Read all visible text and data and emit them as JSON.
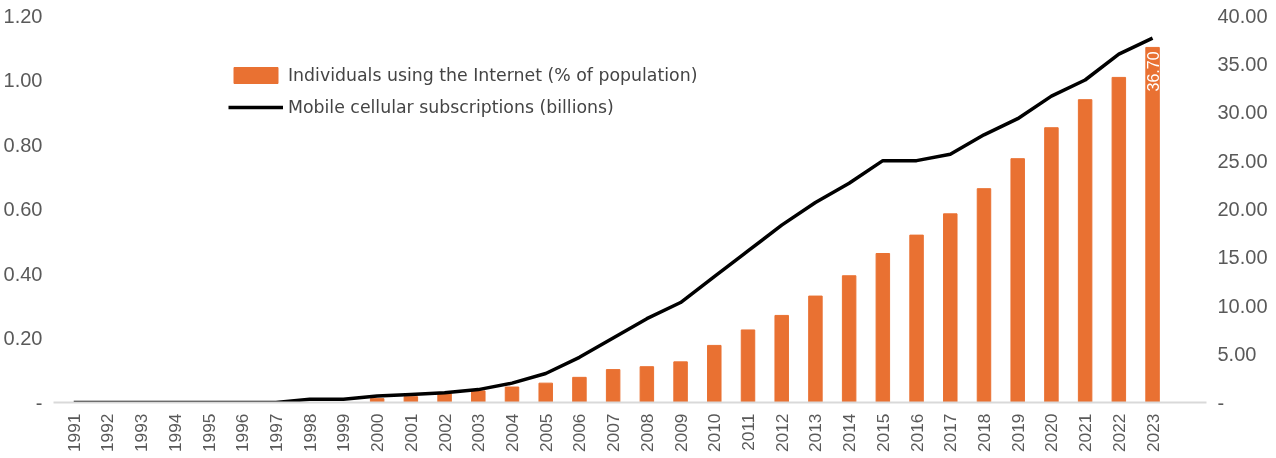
{
  "chart_data": {
    "type": "bar",
    "categories": [
      "1991",
      "1992",
      "1993",
      "1994",
      "1995",
      "1996",
      "1997",
      "1998",
      "1999",
      "2000",
      "2001",
      "2002",
      "2003",
      "2004",
      "2005",
      "2006",
      "2007",
      "2008",
      "2009",
      "2010",
      "2011",
      "2012",
      "2013",
      "2014",
      "2015",
      "2016",
      "2017",
      "2018",
      "2019",
      "2020",
      "2021",
      "2022",
      "2023"
    ],
    "series": [
      {
        "name": "Individuals using the Internet (% of population)",
        "axis": "y2",
        "color": "#e97132",
        "values": [
          0,
          0,
          0,
          0,
          0,
          0,
          0,
          0,
          0,
          0.4,
          0.6,
          0.9,
          1.2,
          1.6,
          2.0,
          2.6,
          3.4,
          3.7,
          4.2,
          5.9,
          7.5,
          9.0,
          11.0,
          13.1,
          15.4,
          17.3,
          19.5,
          22.1,
          25.2,
          28.4,
          31.3,
          33.6,
          36.7
        ],
        "value_labels": [
          null,
          null,
          null,
          null,
          null,
          null,
          null,
          null,
          null,
          null,
          null,
          null,
          null,
          null,
          null,
          null,
          null,
          null,
          null,
          null,
          null,
          null,
          null,
          null,
          null,
          null,
          null,
          null,
          null,
          null,
          null,
          null,
          "36.70"
        ]
      },
      {
        "name": "Mobile cellular subscriptions (billions)",
        "type": "line",
        "color": "#000000",
        "values": [
          0,
          0,
          0,
          0,
          0,
          0,
          0,
          0.01,
          0.01,
          0.02,
          0.025,
          0.03,
          0.04,
          0.06,
          0.09,
          0.14,
          0.2,
          0.26,
          0.31,
          0.39,
          0.47,
          0.55,
          0.62,
          0.68,
          0.75,
          0.75,
          0.77,
          0.83,
          0.88,
          0.95,
          1.0,
          1.08,
          1.13
        ]
      }
    ],
    "ylim": [
      0,
      1.2
    ],
    "yticks": [
      {
        "value": 0,
        "label": "-"
      },
      {
        "value": 0.2,
        "label": "0.20"
      },
      {
        "value": 0.4,
        "label": "0.40"
      },
      {
        "value": 0.6,
        "label": "0.60"
      },
      {
        "value": 0.8,
        "label": "0.80"
      },
      {
        "value": 1.0,
        "label": "1.00"
      },
      {
        "value": 1.2,
        "label": "1.20"
      }
    ],
    "y2lim": [
      0,
      40
    ],
    "y2ticks": [
      {
        "value": 0,
        "label": "-"
      },
      {
        "value": 5,
        "label": "5.00"
      },
      {
        "value": 10,
        "label": "10.00"
      },
      {
        "value": 15,
        "label": "15.00"
      },
      {
        "value": 20,
        "label": "20.00"
      },
      {
        "value": 25,
        "label": "25.00"
      },
      {
        "value": 30,
        "label": "30.00"
      },
      {
        "value": 35,
        "label": "35.00"
      },
      {
        "value": 40,
        "label": "40.00"
      }
    ],
    "legend": "top left",
    "grid": false,
    "marker": "none",
    "line_style": "solid"
  }
}
